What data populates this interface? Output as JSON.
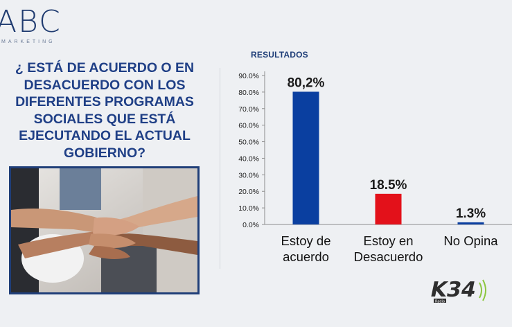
{
  "logo": {
    "main": "ABC",
    "sub": "MARKETING"
  },
  "question": "¿ ESTÁ DE ACUERDO O EN DESACUERDO CON LOS DIFERENTES PROGRAMAS SOCIALES QUE ESTÁ EJECUTANDO EL ACTUAL GOBIERNO?",
  "results_title": "RESULTADOS",
  "brand": {
    "main": "K34",
    "sub": "Radio"
  },
  "colors": {
    "title": "#1f3f86",
    "bar_blue": "#0a3fa0",
    "bar_red": "#e3111a",
    "brand_green": "#8cc63f"
  },
  "chart_data": {
    "type": "bar",
    "categories": [
      "Estoy de acuerdo",
      "Estoy en Desacuerdo",
      "No Opina"
    ],
    "category_lines": [
      [
        "Estoy de",
        "acuerdo"
      ],
      [
        "Estoy en",
        "Desacuerdo"
      ],
      [
        "No Opina"
      ]
    ],
    "values": [
      80.2,
      18.5,
      1.3
    ],
    "data_labels": [
      "80,2%",
      "18.5%",
      "1.3%"
    ],
    "bar_colors": [
      "#0a3fa0",
      "#e3111a",
      "#0a3fa0"
    ],
    "y_ticks": [
      "0.0%",
      "10.0%",
      "20.0%",
      "30.0%",
      "40.0%",
      "50.0%",
      "60.0%",
      "70.0%",
      "80.0%",
      "90.0%"
    ],
    "ylim": [
      0,
      90
    ],
    "grid": false,
    "legend": "none"
  }
}
